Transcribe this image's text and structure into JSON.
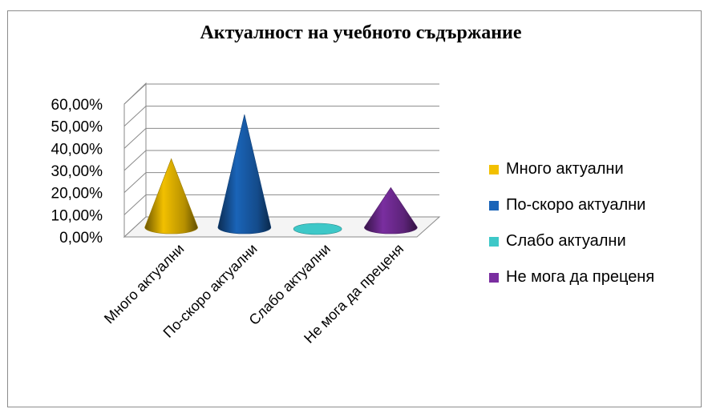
{
  "chart_data": {
    "type": "bar",
    "title": "Актуалност на учебното съдържание",
    "categories": [
      "Много актуални",
      "По-скоро актуални",
      "Слабо актуални",
      "Не мога да преценя"
    ],
    "series": [
      {
        "values": [
          29.5,
          49.5,
          0.5,
          16.5
        ]
      }
    ],
    "colors": [
      "#f2c000",
      "#1a64b8",
      "#3ec8c8",
      "#7a2ea0"
    ],
    "yticks": [
      "0,00%",
      "10,00%",
      "20,00%",
      "30,00%",
      "40,00%",
      "50,00%",
      "60,00%"
    ],
    "ylim": [
      0,
      60
    ],
    "xlabel": "",
    "ylabel": "",
    "grid": true,
    "legend": {
      "position": "right",
      "entries": [
        "Много актуални",
        "По-скоро актуални",
        "Слабо актуални",
        "Не мога да преценя"
      ]
    },
    "style": "3d-cone"
  }
}
